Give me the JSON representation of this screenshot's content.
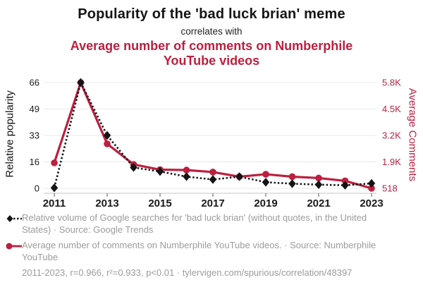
{
  "colors": {
    "red": "#bc1f3f",
    "black": "#141414",
    "legend_text": "#9c9c9c",
    "gridline": "#e8e8e8",
    "axis_line": "#c4c4c4",
    "tick": "#8a8a8a"
  },
  "chart_data": {
    "type": "line",
    "title": "Popularity of the 'bad luck brian' meme",
    "connector": "correlates with",
    "subtitle": "Average number of comments on Numberphile YouTube videos",
    "x": [
      2011,
      2012,
      2013,
      2014,
      2015,
      2016,
      2017,
      2018,
      2019,
      2020,
      2021,
      2022,
      2023
    ],
    "x_ticks": [
      2011,
      2013,
      2015,
      2017,
      2019,
      2021,
      2023
    ],
    "grid": true,
    "legend_position": "bottom",
    "left_axis": {
      "label": "Relative popularity",
      "min": 0,
      "max": 66,
      "tick_labels": [
        "0",
        "16",
        "33",
        "49",
        "66"
      ],
      "color": "#141414"
    },
    "right_axis": {
      "label": "Average Comments",
      "min": 518,
      "max": 5800,
      "tick_labels": [
        "518",
        "1.9K",
        "3.2K",
        "4.5K",
        "5.8K"
      ],
      "color": "#bc1f3f"
    },
    "series": [
      {
        "id": "google-trends",
        "name": "Relative volume of Google searches for 'bad luck brian'",
        "legend_label": "Relative volume of Google searches for 'bad luck brian' (without quotes, in the United States) · Source: Google Trends",
        "axis": "left",
        "color": "#141414",
        "style": "dashed",
        "marker": "diamond",
        "values": [
          0.3,
          66,
          33,
          13,
          10.5,
          7.3,
          5.5,
          7.3,
          3.8,
          2.9,
          2.3,
          1.9,
          3.1
        ]
      },
      {
        "id": "numberphile-comments",
        "name": "Average number of comments on Numberphile YouTube videos",
        "legend_label": "Average number of comments on Numberphile YouTube videos. · Source: Numberphile YouTube",
        "axis": "right",
        "color": "#bc1f3f",
        "style": "solid",
        "marker": "circle",
        "values": [
          1790,
          5800,
          2740,
          1710,
          1450,
          1430,
          1330,
          1100,
          1220,
          1100,
          1030,
          890,
          518
        ]
      }
    ]
  },
  "footer": {
    "text": "2011-2023, r=0.966, r²=0.933, p<0.01 · tylervigen.com/spurious/correlation/48397"
  }
}
